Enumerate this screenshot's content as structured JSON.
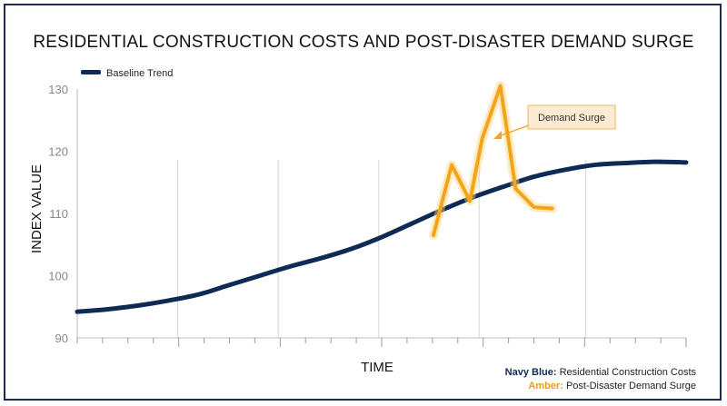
{
  "chart_data": {
    "type": "line",
    "title": "RESIDENTIAL CONSTRUCTION COSTS AND POST-DISASTER DEMAND SURGE",
    "xlabel": "TIME",
    "ylabel": "INDEX VALUE",
    "ylim": [
      90,
      130
    ],
    "yticks": [
      90,
      100,
      110,
      120,
      130
    ],
    "xlim": [
      0,
      1
    ],
    "grid": "vertical",
    "legend": {
      "position": "top-left",
      "label": "Baseline Trend"
    },
    "series": [
      {
        "name": "Baseline Trend",
        "color": "#0f2a55",
        "x": [
          0,
          0.05,
          0.1,
          0.15,
          0.2,
          0.25,
          0.3,
          0.35,
          0.4,
          0.45,
          0.5,
          0.55,
          0.6,
          0.65,
          0.7,
          0.75,
          0.8,
          0.85,
          0.9,
          0.95,
          1.0
        ],
        "y": [
          94.2,
          94.6,
          95.2,
          96.0,
          97.0,
          98.5,
          100.0,
          101.5,
          102.8,
          104.3,
          106.2,
          108.4,
          110.6,
          112.6,
          114.3,
          115.9,
          117.0,
          117.8,
          118.1,
          118.3,
          118.2
        ]
      },
      {
        "name": "Demand Surge",
        "color": "#f2a51a",
        "x": [
          0.585,
          0.615,
          0.645,
          0.665,
          0.695,
          0.72,
          0.75,
          0.78
        ],
        "y": [
          106.5,
          117.8,
          112.0,
          122.0,
          130.5,
          114.0,
          111.0,
          110.8
        ]
      }
    ],
    "annotations": [
      {
        "text": "Demand Surge",
        "points_to": {
          "x": 0.7,
          "y": 122
        }
      }
    ],
    "notes": [
      {
        "label": "Navy Blue:",
        "text": "Residential Construction Costs",
        "color": "#0f2a55"
      },
      {
        "label": "Amber:",
        "text": "Post-Disaster Demand Surge",
        "color": "#e89d1a"
      }
    ]
  }
}
